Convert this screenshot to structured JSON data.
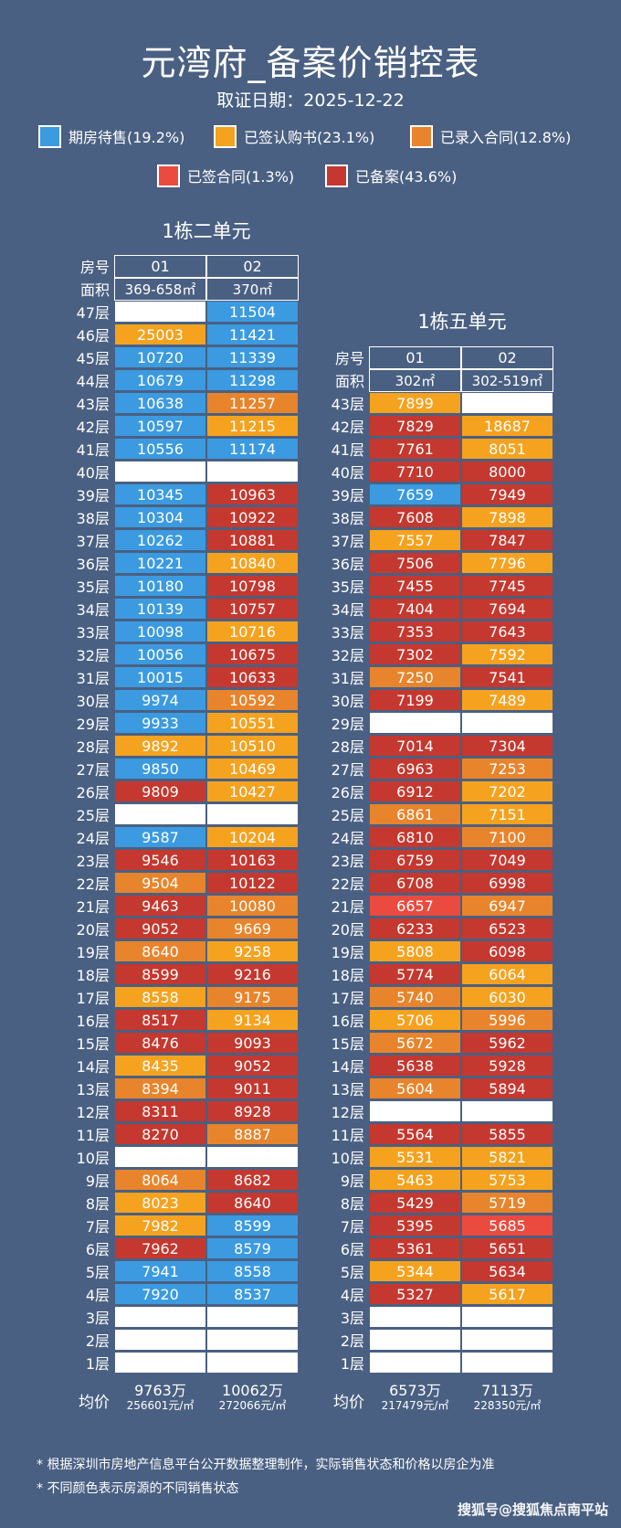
{
  "title": "元湾府_备案价销控表",
  "subtitle": "取证日期：2025-12-22",
  "colors": {
    "s1": "#3b9ae0",
    "s2": "#f5a21f",
    "s3": "#e8842b",
    "s4": "#eb4a3e",
    "s5": "#c4382f"
  },
  "legend": [
    {
      "key": "s1",
      "label": "期房待售(19.2%)"
    },
    {
      "key": "s2",
      "label": "已签认购书(23.1%)"
    },
    {
      "key": "s3",
      "label": "已录入合同(12.8%)"
    },
    {
      "key": "s4",
      "label": "已签合同(1.3%)"
    },
    {
      "key": "s5",
      "label": "已备案(43.6%)"
    }
  ],
  "labels": {
    "room": "房号",
    "area": "面积",
    "avg": "均价",
    "floor_suffix": "层"
  },
  "chart_data": {
    "type": "table",
    "buildings": [
      {
        "title": "1栋二单元",
        "top_floor": 47,
        "columns": [
          {
            "room": "01",
            "area": "369-658㎡",
            "avg_total": "9763万",
            "avg_unit": "256601元/㎡",
            "cells": [
              null,
              [
                "25003",
                "s2"
              ],
              [
                "10720",
                "s1"
              ],
              [
                "10679",
                "s1"
              ],
              [
                "10638",
                "s1"
              ],
              [
                "10597",
                "s1"
              ],
              [
                "10556",
                "s1"
              ],
              null,
              [
                "10345",
                "s1"
              ],
              [
                "10304",
                "s1"
              ],
              [
                "10262",
                "s1"
              ],
              [
                "10221",
                "s1"
              ],
              [
                "10180",
                "s1"
              ],
              [
                "10139",
                "s1"
              ],
              [
                "10098",
                "s1"
              ],
              [
                "10056",
                "s1"
              ],
              [
                "10015",
                "s1"
              ],
              [
                "9974",
                "s1"
              ],
              [
                "9933",
                "s1"
              ],
              [
                "9892",
                "s2"
              ],
              [
                "9850",
                "s1"
              ],
              [
                "9809",
                "s5"
              ],
              null,
              [
                "9587",
                "s1"
              ],
              [
                "9546",
                "s5"
              ],
              [
                "9504",
                "s3"
              ],
              [
                "9463",
                "s5"
              ],
              [
                "9052",
                "s5"
              ],
              [
                "8640",
                "s3"
              ],
              [
                "8599",
                "s5"
              ],
              [
                "8558",
                "s2"
              ],
              [
                "8517",
                "s5"
              ],
              [
                "8476",
                "s5"
              ],
              [
                "8435",
                "s2"
              ],
              [
                "8394",
                "s3"
              ],
              [
                "8311",
                "s5"
              ],
              [
                "8270",
                "s5"
              ],
              null,
              [
                "8064",
                "s3"
              ],
              [
                "8023",
                "s2"
              ],
              [
                "7982",
                "s2"
              ],
              [
                "7962",
                "s5"
              ],
              [
                "7941",
                "s1"
              ],
              [
                "7920",
                "s1"
              ],
              null,
              null,
              null
            ]
          },
          {
            "room": "02",
            "area": "370㎡",
            "avg_total": "10062万",
            "avg_unit": "272066元/㎡",
            "cells": [
              [
                "11504",
                "s1"
              ],
              [
                "11421",
                "s1"
              ],
              [
                "11339",
                "s1"
              ],
              [
                "11298",
                "s1"
              ],
              [
                "11257",
                "s3"
              ],
              [
                "11215",
                "s2"
              ],
              [
                "11174",
                "s1"
              ],
              null,
              [
                "10963",
                "s5"
              ],
              [
                "10922",
                "s5"
              ],
              [
                "10881",
                "s5"
              ],
              [
                "10840",
                "s2"
              ],
              [
                "10798",
                "s5"
              ],
              [
                "10757",
                "s5"
              ],
              [
                "10716",
                "s2"
              ],
              [
                "10675",
                "s5"
              ],
              [
                "10633",
                "s5"
              ],
              [
                "10592",
                "s3"
              ],
              [
                "10551",
                "s2"
              ],
              [
                "10510",
                "s2"
              ],
              [
                "10469",
                "s2"
              ],
              [
                "10427",
                "s2"
              ],
              null,
              [
                "10204",
                "s2"
              ],
              [
                "10163",
                "s5"
              ],
              [
                "10122",
                "s5"
              ],
              [
                "10080",
                "s3"
              ],
              [
                "9669",
                "s3"
              ],
              [
                "9258",
                "s2"
              ],
              [
                "9216",
                "s5"
              ],
              [
                "9175",
                "s3"
              ],
              [
                "9134",
                "s2"
              ],
              [
                "9093",
                "s5"
              ],
              [
                "9052",
                "s5"
              ],
              [
                "9011",
                "s5"
              ],
              [
                "8928",
                "s5"
              ],
              [
                "8887",
                "s3"
              ],
              null,
              [
                "8682",
                "s5"
              ],
              [
                "8640",
                "s5"
              ],
              [
                "8599",
                "s1"
              ],
              [
                "8579",
                "s1"
              ],
              [
                "8558",
                "s1"
              ],
              [
                "8537",
                "s1"
              ],
              null,
              null,
              null
            ]
          }
        ]
      },
      {
        "title": "1栋五单元",
        "top_floor": 43,
        "columns": [
          {
            "room": "01",
            "area": "302㎡",
            "avg_total": "6573万",
            "avg_unit": "217479元/㎡",
            "cells": [
              [
                "7899",
                "s2"
              ],
              [
                "7829",
                "s5"
              ],
              [
                "7761",
                "s5"
              ],
              [
                "7710",
                "s5"
              ],
              [
                "7659",
                "s1"
              ],
              [
                "7608",
                "s5"
              ],
              [
                "7557",
                "s2"
              ],
              [
                "7506",
                "s5"
              ],
              [
                "7455",
                "s5"
              ],
              [
                "7404",
                "s5"
              ],
              [
                "7353",
                "s5"
              ],
              [
                "7302",
                "s5"
              ],
              [
                "7250",
                "s3"
              ],
              [
                "7199",
                "s5"
              ],
              null,
              [
                "7014",
                "s5"
              ],
              [
                "6963",
                "s5"
              ],
              [
                "6912",
                "s5"
              ],
              [
                "6861",
                "s3"
              ],
              [
                "6810",
                "s5"
              ],
              [
                "6759",
                "s5"
              ],
              [
                "6708",
                "s5"
              ],
              [
                "6657",
                "s4"
              ],
              [
                "6233",
                "s5"
              ],
              [
                "5808",
                "s2"
              ],
              [
                "5774",
                "s5"
              ],
              [
                "5740",
                "s3"
              ],
              [
                "5706",
                "s2"
              ],
              [
                "5672",
                "s3"
              ],
              [
                "5638",
                "s5"
              ],
              [
                "5604",
                "s3"
              ],
              null,
              [
                "5564",
                "s5"
              ],
              [
                "5531",
                "s2"
              ],
              [
                "5463",
                "s2"
              ],
              [
                "5429",
                "s5"
              ],
              [
                "5395",
                "s5"
              ],
              [
                "5361",
                "s5"
              ],
              [
                "5344",
                "s2"
              ],
              [
                "5327",
                "s5"
              ],
              null,
              null,
              null
            ]
          },
          {
            "room": "02",
            "area": "302-519㎡",
            "avg_total": "7113万",
            "avg_unit": "228350元/㎡",
            "cells": [
              null,
              [
                "18687",
                "s2"
              ],
              [
                "8051",
                "s2"
              ],
              [
                "8000",
                "s5"
              ],
              [
                "7949",
                "s5"
              ],
              [
                "7898",
                "s2"
              ],
              [
                "7847",
                "s5"
              ],
              [
                "7796",
                "s2"
              ],
              [
                "7745",
                "s5"
              ],
              [
                "7694",
                "s5"
              ],
              [
                "7643",
                "s5"
              ],
              [
                "7592",
                "s2"
              ],
              [
                "7541",
                "s5"
              ],
              [
                "7489",
                "s2"
              ],
              null,
              [
                "7304",
                "s5"
              ],
              [
                "7253",
                "s3"
              ],
              [
                "7202",
                "s2"
              ],
              [
                "7151",
                "s2"
              ],
              [
                "7100",
                "s3"
              ],
              [
                "7049",
                "s5"
              ],
              [
                "6998",
                "s5"
              ],
              [
                "6947",
                "s3"
              ],
              [
                "6523",
                "s5"
              ],
              [
                "6098",
                "s5"
              ],
              [
                "6064",
                "s2"
              ],
              [
                "6030",
                "s2"
              ],
              [
                "5996",
                "s3"
              ],
              [
                "5962",
                "s5"
              ],
              [
                "5928",
                "s5"
              ],
              [
                "5894",
                "s5"
              ],
              null,
              [
                "5855",
                "s5"
              ],
              [
                "5821",
                "s2"
              ],
              [
                "5753",
                "s2"
              ],
              [
                "5719",
                "s3"
              ],
              [
                "5685",
                "s4"
              ],
              [
                "5651",
                "s5"
              ],
              [
                "5634",
                "s5"
              ],
              [
                "5617",
                "s2"
              ],
              null,
              null,
              null
            ]
          }
        ]
      }
    ]
  },
  "notes": [
    "* 根据深圳市房地产信息平台公开数据整理制作，实际销售状态和价格以房企为准",
    "* 不同颜色表示房源的不同销售状态"
  ],
  "watermark": "搜狐号@搜狐焦点南平站"
}
